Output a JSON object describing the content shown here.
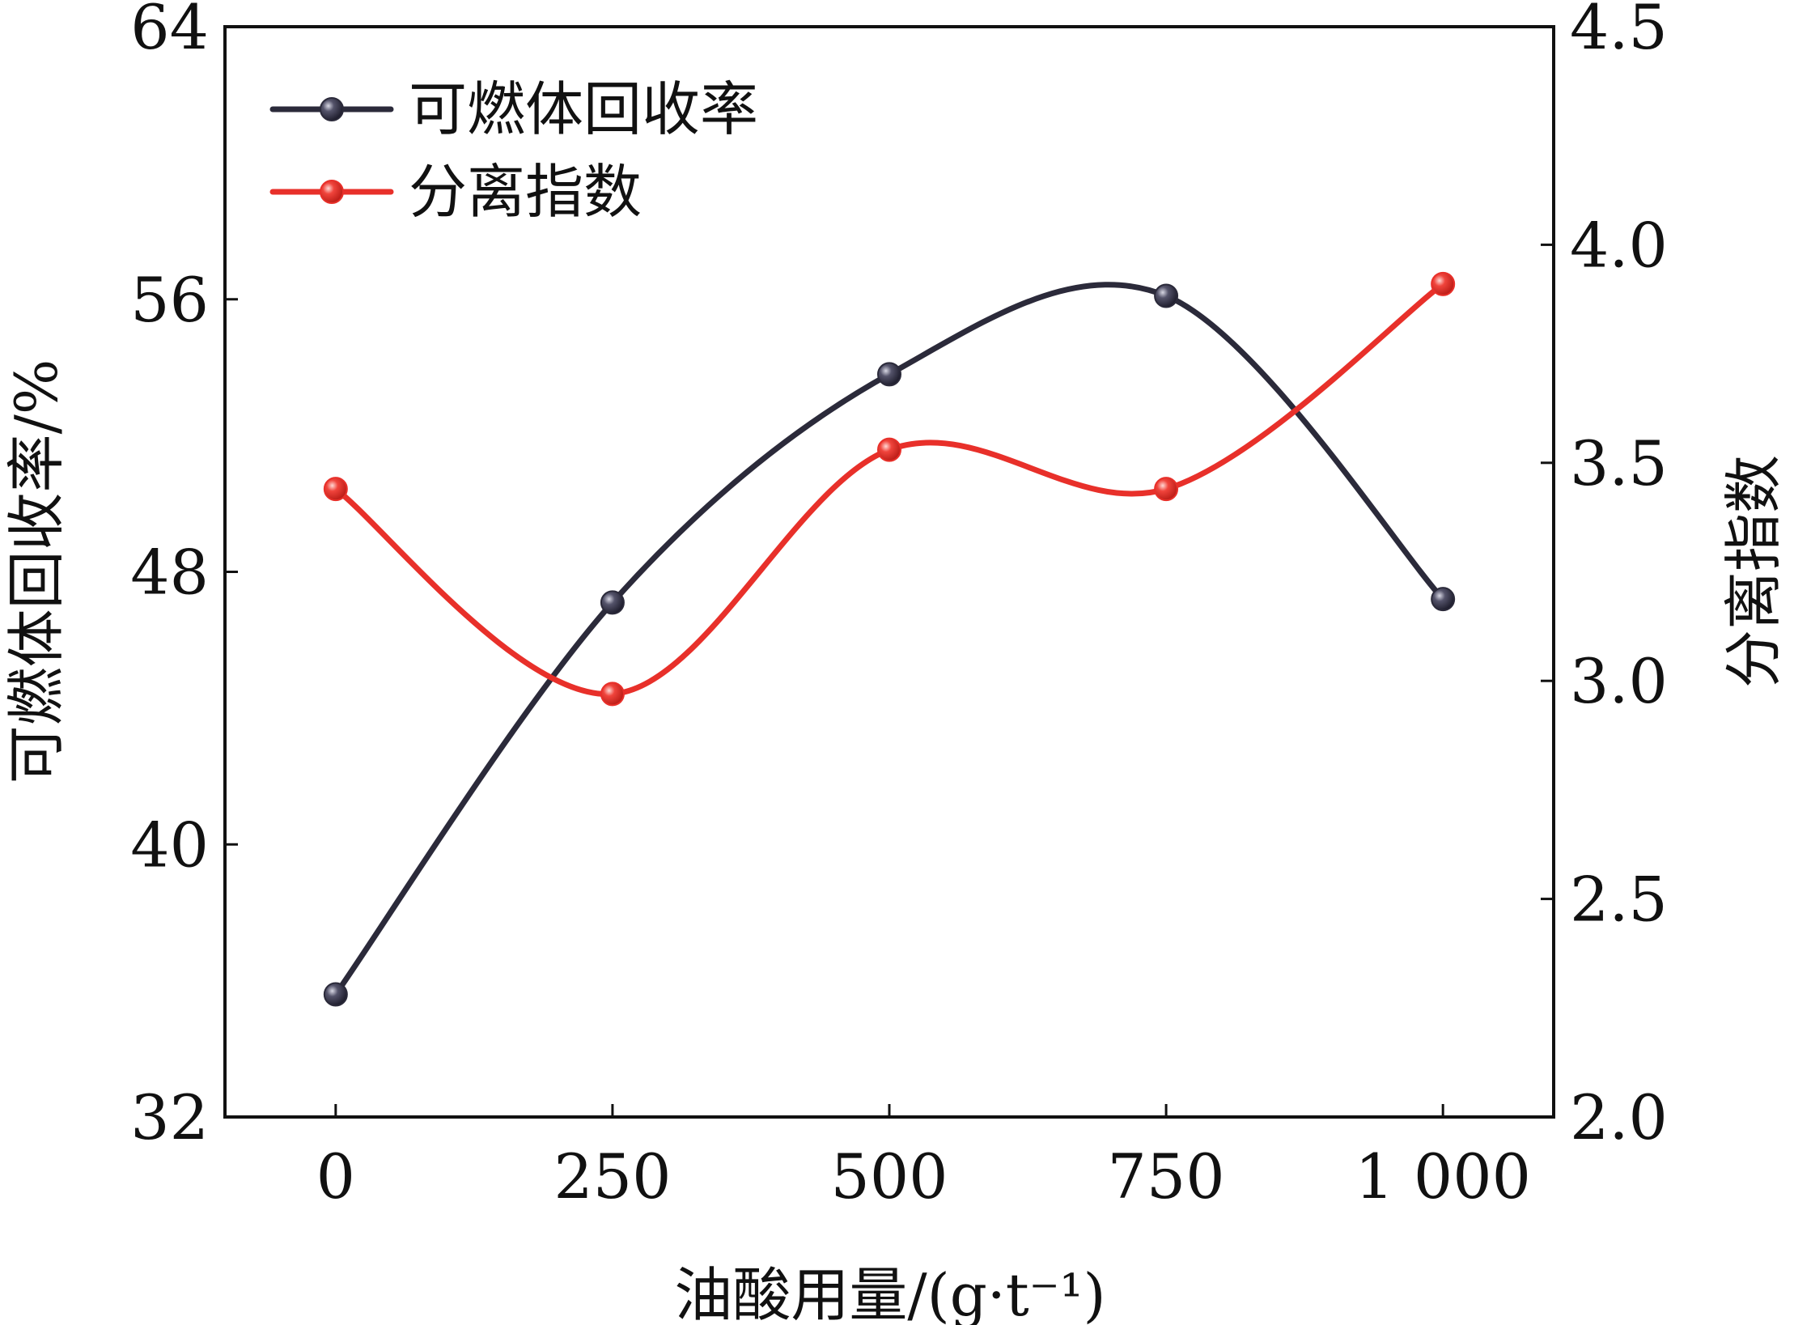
{
  "chart_data": {
    "type": "line",
    "title": "",
    "x": [
      0,
      250,
      500,
      750,
      1000
    ],
    "x_tick_labels": [
      "0",
      "250",
      "500",
      "750",
      "1 000"
    ],
    "xlabel": "油酸用量/(g·t⁻¹)",
    "xlim": [
      -100,
      1100
    ],
    "y_left": {
      "label": "可燃体回收率/%",
      "ylim": [
        32,
        64
      ],
      "ticks": [
        32,
        40,
        48,
        56,
        64
      ]
    },
    "y_right": {
      "label": "分离指数",
      "ylim": [
        2.0,
        4.5
      ],
      "ticks": [
        "2.0",
        "2.5",
        "3.0",
        "3.5",
        "4.0",
        "4.5"
      ]
    },
    "series": [
      {
        "name": "可燃体回收率",
        "axis": "left",
        "color": "#2b2a3a",
        "values": [
          35.6,
          47.1,
          53.8,
          56.1,
          47.2
        ]
      },
      {
        "name": "分离指数",
        "axis": "right",
        "color": "#e8302a",
        "values": [
          3.44,
          2.97,
          3.53,
          3.44,
          3.91
        ]
      }
    ],
    "legend_position": "top-left",
    "grid": false
  }
}
